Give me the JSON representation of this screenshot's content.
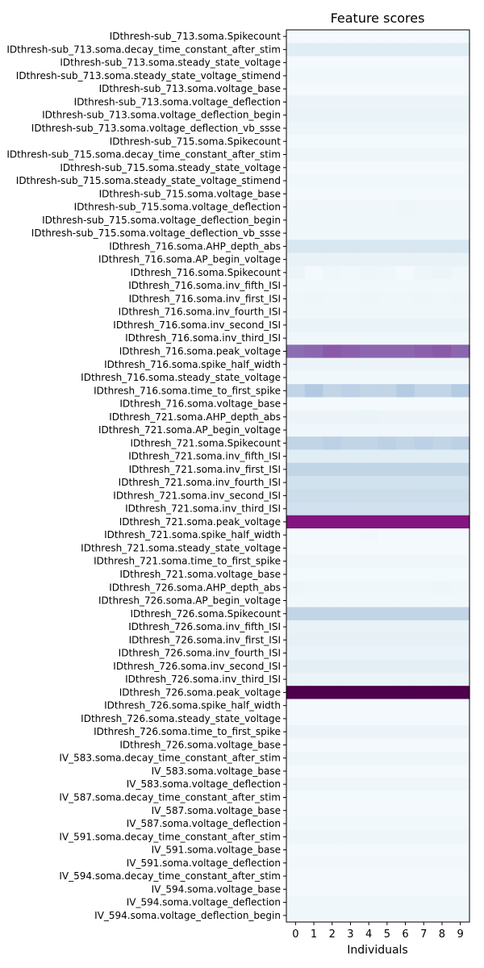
{
  "chart_data": {
    "type": "heatmap",
    "title": "Feature scores",
    "xlabel": "Individuals",
    "ylabel": "",
    "colormap": "BuPu",
    "cmap_stops": [
      "#f7fcfd",
      "#e0ecf4",
      "#bfd3e6",
      "#9ebcda",
      "#8c96c6",
      "#8c6bb1",
      "#88419d",
      "#810f7c",
      "#4d004b"
    ],
    "x_categories": [
      "0",
      "1",
      "2",
      "3",
      "4",
      "5",
      "6",
      "7",
      "8",
      "9"
    ],
    "rows": [
      {
        "label": "IDthresh-sub_713.soma.Spikecount",
        "values": [
          0.02,
          0.02,
          0.02,
          0.02,
          0.02,
          0.02,
          0.02,
          0.02,
          0.02,
          0.02
        ]
      },
      {
        "label": "IDthresh-sub_713.soma.decay_time_constant_after_stim",
        "values": [
          0.12,
          0.12,
          0.12,
          0.12,
          0.12,
          0.12,
          0.12,
          0.12,
          0.12,
          0.12
        ]
      },
      {
        "label": "IDthresh-sub_713.soma.steady_state_voltage",
        "values": [
          0.02,
          0.02,
          0.02,
          0.02,
          0.02,
          0.02,
          0.02,
          0.02,
          0.02,
          0.02
        ]
      },
      {
        "label": "IDthresh-sub_713.soma.steady_state_voltage_stimend",
        "values": [
          0.03,
          0.03,
          0.03,
          0.03,
          0.03,
          0.03,
          0.03,
          0.03,
          0.03,
          0.03
        ]
      },
      {
        "label": "IDthresh-sub_713.soma.voltage_base",
        "values": [
          0.02,
          0.02,
          0.02,
          0.02,
          0.02,
          0.02,
          0.02,
          0.02,
          0.02,
          0.02
        ]
      },
      {
        "label": "IDthresh-sub_713.soma.voltage_deflection",
        "values": [
          0.06,
          0.06,
          0.06,
          0.06,
          0.06,
          0.06,
          0.06,
          0.06,
          0.06,
          0.06
        ]
      },
      {
        "label": "IDthresh-sub_713.soma.voltage_deflection_begin",
        "values": [
          0.07,
          0.07,
          0.07,
          0.07,
          0.07,
          0.07,
          0.07,
          0.07,
          0.07,
          0.07
        ]
      },
      {
        "label": "IDthresh-sub_713.soma.voltage_deflection_vb_ssse",
        "values": [
          0.05,
          0.05,
          0.05,
          0.05,
          0.05,
          0.05,
          0.05,
          0.05,
          0.05,
          0.05
        ]
      },
      {
        "label": "IDthresh-sub_715.soma.Spikecount",
        "values": [
          0.02,
          0.02,
          0.02,
          0.02,
          0.02,
          0.02,
          0.02,
          0.02,
          0.02,
          0.02
        ]
      },
      {
        "label": "IDthresh-sub_715.soma.decay_time_constant_after_stim",
        "values": [
          0.05,
          0.05,
          0.05,
          0.05,
          0.05,
          0.05,
          0.05,
          0.05,
          0.05,
          0.05
        ]
      },
      {
        "label": "IDthresh-sub_715.soma.steady_state_voltage",
        "values": [
          0.02,
          0.02,
          0.02,
          0.02,
          0.02,
          0.02,
          0.02,
          0.02,
          0.02,
          0.02
        ]
      },
      {
        "label": "IDthresh-sub_715.soma.steady_state_voltage_stimend",
        "values": [
          0.03,
          0.03,
          0.03,
          0.03,
          0.03,
          0.03,
          0.03,
          0.03,
          0.03,
          0.03
        ]
      },
      {
        "label": "IDthresh-sub_715.soma.voltage_base",
        "values": [
          0.02,
          0.02,
          0.02,
          0.02,
          0.02,
          0.02,
          0.02,
          0.02,
          0.02,
          0.02
        ]
      },
      {
        "label": "IDthresh-sub_715.soma.voltage_deflection",
        "values": [
          0.04,
          0.04,
          0.04,
          0.04,
          0.04,
          0.04,
          0.05,
          0.04,
          0.04,
          0.04
        ]
      },
      {
        "label": "IDthresh-sub_715.soma.voltage_deflection_begin",
        "values": [
          0.04,
          0.04,
          0.04,
          0.04,
          0.04,
          0.04,
          0.04,
          0.04,
          0.04,
          0.04
        ]
      },
      {
        "label": "IDthresh-sub_715.soma.voltage_deflection_vb_ssse",
        "values": [
          0.04,
          0.04,
          0.04,
          0.04,
          0.04,
          0.04,
          0.04,
          0.04,
          0.04,
          0.04
        ]
      },
      {
        "label": "IDthresh_716.soma.AHP_depth_abs",
        "values": [
          0.15,
          0.15,
          0.15,
          0.15,
          0.15,
          0.15,
          0.15,
          0.15,
          0.15,
          0.15
        ]
      },
      {
        "label": "IDthresh_716.soma.AP_begin_voltage",
        "values": [
          0.08,
          0.08,
          0.08,
          0.08,
          0.08,
          0.08,
          0.08,
          0.08,
          0.08,
          0.08
        ]
      },
      {
        "label": "IDthresh_716.soma.Spikecount",
        "values": [
          0.06,
          0.02,
          0.04,
          0.03,
          0.05,
          0.04,
          0.02,
          0.05,
          0.06,
          0.04
        ]
      },
      {
        "label": "IDthresh_716.soma.inv_fifth_ISI",
        "values": [
          0.03,
          0.03,
          0.03,
          0.03,
          0.03,
          0.03,
          0.03,
          0.03,
          0.03,
          0.03
        ]
      },
      {
        "label": "IDthresh_716.soma.inv_first_ISI",
        "values": [
          0.04,
          0.05,
          0.04,
          0.04,
          0.05,
          0.04,
          0.04,
          0.05,
          0.04,
          0.05
        ]
      },
      {
        "label": "IDthresh_716.soma.inv_fourth_ISI",
        "values": [
          0.04,
          0.04,
          0.04,
          0.04,
          0.04,
          0.04,
          0.04,
          0.04,
          0.04,
          0.04
        ]
      },
      {
        "label": "IDthresh_716.soma.inv_second_ISI",
        "values": [
          0.07,
          0.07,
          0.07,
          0.07,
          0.07,
          0.07,
          0.07,
          0.07,
          0.07,
          0.07
        ]
      },
      {
        "label": "IDthresh_716.soma.inv_third_ISI",
        "values": [
          0.04,
          0.04,
          0.04,
          0.04,
          0.04,
          0.04,
          0.04,
          0.04,
          0.04,
          0.04
        ]
      },
      {
        "label": "IDthresh_716.soma.peak_voltage",
        "values": [
          0.62,
          0.64,
          0.68,
          0.66,
          0.64,
          0.64,
          0.64,
          0.66,
          0.68,
          0.64
        ]
      },
      {
        "label": "IDthresh_716.soma.spike_half_width",
        "values": [
          0.06,
          0.06,
          0.06,
          0.06,
          0.06,
          0.06,
          0.06,
          0.06,
          0.06,
          0.06
        ]
      },
      {
        "label": "IDthresh_716.soma.steady_state_voltage",
        "values": [
          0.03,
          0.03,
          0.03,
          0.03,
          0.03,
          0.03,
          0.03,
          0.03,
          0.03,
          0.03
        ]
      },
      {
        "label": "IDthresh_716.soma.time_to_first_spike",
        "values": [
          0.24,
          0.3,
          0.24,
          0.26,
          0.24,
          0.24,
          0.29,
          0.24,
          0.24,
          0.29
        ]
      },
      {
        "label": "IDthresh_716.soma.voltage_base",
        "values": [
          0.02,
          0.02,
          0.02,
          0.02,
          0.02,
          0.02,
          0.02,
          0.02,
          0.02,
          0.02
        ]
      },
      {
        "label": "IDthresh_721.soma.AHP_depth_abs",
        "values": [
          0.06,
          0.06,
          0.06,
          0.06,
          0.07,
          0.06,
          0.06,
          0.06,
          0.06,
          0.06
        ]
      },
      {
        "label": "IDthresh_721.soma.AP_begin_voltage",
        "values": [
          0.04,
          0.04,
          0.04,
          0.04,
          0.04,
          0.04,
          0.04,
          0.04,
          0.04,
          0.04
        ]
      },
      {
        "label": "IDthresh_721.soma.Spikecount",
        "values": [
          0.24,
          0.24,
          0.26,
          0.24,
          0.24,
          0.26,
          0.24,
          0.26,
          0.24,
          0.26
        ]
      },
      {
        "label": "IDthresh_721.soma.inv_fifth_ISI",
        "values": [
          0.12,
          0.12,
          0.12,
          0.12,
          0.12,
          0.12,
          0.12,
          0.12,
          0.12,
          0.12
        ]
      },
      {
        "label": "IDthresh_721.soma.inv_first_ISI",
        "values": [
          0.24,
          0.24,
          0.24,
          0.24,
          0.24,
          0.24,
          0.24,
          0.24,
          0.24,
          0.24
        ]
      },
      {
        "label": "IDthresh_721.soma.inv_fourth_ISI",
        "values": [
          0.18,
          0.18,
          0.18,
          0.18,
          0.18,
          0.18,
          0.18,
          0.18,
          0.18,
          0.18
        ]
      },
      {
        "label": "IDthresh_721.soma.inv_second_ISI",
        "values": [
          0.2,
          0.2,
          0.2,
          0.2,
          0.2,
          0.2,
          0.2,
          0.2,
          0.2,
          0.2
        ]
      },
      {
        "label": "IDthresh_721.soma.inv_third_ISI",
        "values": [
          0.18,
          0.18,
          0.18,
          0.18,
          0.18,
          0.18,
          0.18,
          0.18,
          0.18,
          0.18
        ]
      },
      {
        "label": "IDthresh_721.soma.peak_voltage",
        "values": [
          0.86,
          0.86,
          0.86,
          0.86,
          0.86,
          0.86,
          0.86,
          0.86,
          0.86,
          0.86
        ]
      },
      {
        "label": "IDthresh_721.soma.spike_half_width",
        "values": [
          0.02,
          0.02,
          0.02,
          0.02,
          0.03,
          0.02,
          0.02,
          0.02,
          0.02,
          0.02
        ]
      },
      {
        "label": "IDthresh_721.soma.steady_state_voltage",
        "values": [
          0.02,
          0.02,
          0.02,
          0.02,
          0.02,
          0.02,
          0.02,
          0.02,
          0.02,
          0.02
        ]
      },
      {
        "label": "IDthresh_721.soma.time_to_first_spike",
        "values": [
          0.04,
          0.04,
          0.04,
          0.04,
          0.04,
          0.04,
          0.04,
          0.04,
          0.04,
          0.04
        ]
      },
      {
        "label": "IDthresh_721.soma.voltage_base",
        "values": [
          0.02,
          0.02,
          0.02,
          0.02,
          0.02,
          0.02,
          0.02,
          0.02,
          0.02,
          0.02
        ]
      },
      {
        "label": "IDthresh_726.soma.AHP_depth_abs",
        "values": [
          0.05,
          0.04,
          0.04,
          0.04,
          0.04,
          0.04,
          0.04,
          0.04,
          0.05,
          0.04
        ]
      },
      {
        "label": "IDthresh_726.soma.AP_begin_voltage",
        "values": [
          0.03,
          0.03,
          0.03,
          0.03,
          0.03,
          0.03,
          0.03,
          0.03,
          0.03,
          0.03
        ]
      },
      {
        "label": "IDthresh_726.soma.Spikecount",
        "values": [
          0.24,
          0.24,
          0.24,
          0.24,
          0.24,
          0.24,
          0.24,
          0.24,
          0.24,
          0.24
        ]
      },
      {
        "label": "IDthresh_726.soma.inv_fifth_ISI",
        "values": [
          0.08,
          0.08,
          0.08,
          0.08,
          0.08,
          0.08,
          0.08,
          0.08,
          0.08,
          0.08
        ]
      },
      {
        "label": "IDthresh_726.soma.inv_first_ISI",
        "values": [
          0.09,
          0.09,
          0.09,
          0.09,
          0.09,
          0.09,
          0.09,
          0.09,
          0.09,
          0.09
        ]
      },
      {
        "label": "IDthresh_726.soma.inv_fourth_ISI",
        "values": [
          0.07,
          0.07,
          0.07,
          0.07,
          0.07,
          0.07,
          0.07,
          0.07,
          0.07,
          0.07
        ]
      },
      {
        "label": "IDthresh_726.soma.inv_second_ISI",
        "values": [
          0.11,
          0.11,
          0.11,
          0.11,
          0.11,
          0.11,
          0.11,
          0.11,
          0.11,
          0.11
        ]
      },
      {
        "label": "IDthresh_726.soma.inv_third_ISI",
        "values": [
          0.07,
          0.07,
          0.07,
          0.07,
          0.07,
          0.07,
          0.07,
          0.07,
          0.07,
          0.07
        ]
      },
      {
        "label": "IDthresh_726.soma.peak_voltage",
        "values": [
          1.0,
          1.0,
          1.0,
          1.0,
          1.0,
          1.0,
          1.0,
          1.0,
          1.0,
          1.0
        ]
      },
      {
        "label": "IDthresh_726.soma.spike_half_width",
        "values": [
          0.02,
          0.02,
          0.02,
          0.02,
          0.02,
          0.02,
          0.02,
          0.02,
          0.02,
          0.02
        ]
      },
      {
        "label": "IDthresh_726.soma.steady_state_voltage",
        "values": [
          0.02,
          0.02,
          0.02,
          0.02,
          0.02,
          0.02,
          0.02,
          0.02,
          0.02,
          0.02
        ]
      },
      {
        "label": "IDthresh_726.soma.time_to_first_spike",
        "values": [
          0.06,
          0.06,
          0.06,
          0.06,
          0.06,
          0.06,
          0.06,
          0.06,
          0.06,
          0.06
        ]
      },
      {
        "label": "IDthresh_726.soma.voltage_base",
        "values": [
          0.02,
          0.02,
          0.02,
          0.02,
          0.02,
          0.02,
          0.02,
          0.02,
          0.02,
          0.02
        ]
      },
      {
        "label": "IV_583.soma.decay_time_constant_after_stim",
        "values": [
          0.05,
          0.05,
          0.05,
          0.05,
          0.05,
          0.05,
          0.05,
          0.05,
          0.05,
          0.05
        ]
      },
      {
        "label": "IV_583.soma.voltage_base",
        "values": [
          0.02,
          0.02,
          0.02,
          0.02,
          0.02,
          0.02,
          0.02,
          0.02,
          0.02,
          0.02
        ]
      },
      {
        "label": "IV_583.soma.voltage_deflection",
        "values": [
          0.05,
          0.05,
          0.05,
          0.05,
          0.05,
          0.05,
          0.05,
          0.05,
          0.05,
          0.05
        ]
      },
      {
        "label": "IV_587.soma.decay_time_constant_after_stim",
        "values": [
          0.02,
          0.02,
          0.02,
          0.02,
          0.02,
          0.02,
          0.02,
          0.02,
          0.02,
          0.02
        ]
      },
      {
        "label": "IV_587.soma.voltage_base",
        "values": [
          0.02,
          0.02,
          0.02,
          0.02,
          0.02,
          0.02,
          0.02,
          0.02,
          0.02,
          0.02
        ]
      },
      {
        "label": "IV_587.soma.voltage_deflection",
        "values": [
          0.03,
          0.03,
          0.03,
          0.03,
          0.03,
          0.03,
          0.03,
          0.03,
          0.03,
          0.03
        ]
      },
      {
        "label": "IV_591.soma.decay_time_constant_after_stim",
        "values": [
          0.05,
          0.05,
          0.05,
          0.05,
          0.05,
          0.05,
          0.05,
          0.05,
          0.05,
          0.05
        ]
      },
      {
        "label": "IV_591.soma.voltage_base",
        "values": [
          0.02,
          0.02,
          0.02,
          0.02,
          0.02,
          0.02,
          0.02,
          0.02,
          0.02,
          0.02
        ]
      },
      {
        "label": "IV_591.soma.voltage_deflection",
        "values": [
          0.03,
          0.03,
          0.03,
          0.03,
          0.03,
          0.03,
          0.03,
          0.03,
          0.03,
          0.03
        ]
      },
      {
        "label": "IV_594.soma.decay_time_constant_after_stim",
        "values": [
          0.02,
          0.02,
          0.02,
          0.02,
          0.02,
          0.02,
          0.02,
          0.02,
          0.02,
          0.02
        ]
      },
      {
        "label": "IV_594.soma.voltage_base",
        "values": [
          0.02,
          0.02,
          0.02,
          0.02,
          0.02,
          0.02,
          0.02,
          0.02,
          0.02,
          0.02
        ]
      },
      {
        "label": "IV_594.soma.voltage_deflection",
        "values": [
          0.04,
          0.04,
          0.04,
          0.04,
          0.04,
          0.04,
          0.04,
          0.04,
          0.04,
          0.04
        ]
      },
      {
        "label": "IV_594.soma.voltage_deflection_begin",
        "values": [
          0.04,
          0.04,
          0.04,
          0.04,
          0.04,
          0.04,
          0.04,
          0.04,
          0.04,
          0.04
        ]
      }
    ]
  }
}
